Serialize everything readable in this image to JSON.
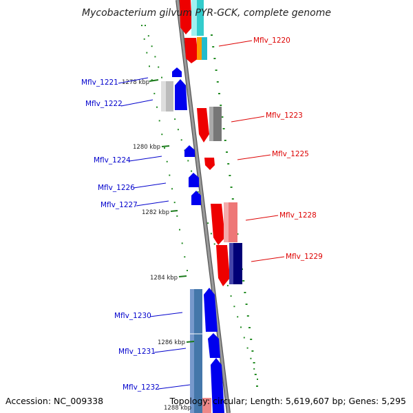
{
  "title": "Mycobacterium gilvum PYR-GCK, complete genome",
  "footer": {
    "accession": "Accession: NC_009338",
    "stats": "Topology: circular; Length: 5,619,607 bp; Genes: 5,295"
  },
  "colors": {
    "forward_cds": "#0000ee",
    "reverse_cds": "#ee0000",
    "label_blue": "#0000cc",
    "label_red": "#dd0000",
    "backbone": "#888888",
    "dots": "#228b22"
  },
  "scale_labels": [
    "1278 kbp",
    "1280 kbp",
    "1282 kbp",
    "1284 kbp",
    "1286 kbp",
    "1288 kbp"
  ],
  "genes": [
    {
      "id": "Mflv_1220",
      "side": "right"
    },
    {
      "id": "Mflv_1221",
      "side": "left"
    },
    {
      "id": "Mflv_1222",
      "side": "left"
    },
    {
      "id": "Mflv_1223",
      "side": "right"
    },
    {
      "id": "Mflv_1224",
      "side": "left"
    },
    {
      "id": "Mflv_1225",
      "side": "right"
    },
    {
      "id": "Mflv_1226",
      "side": "left"
    },
    {
      "id": "Mflv_1227",
      "side": "left"
    },
    {
      "id": "Mflv_1228",
      "side": "right"
    },
    {
      "id": "Mflv_1229",
      "side": "right"
    },
    {
      "id": "Mflv_1230",
      "side": "left"
    },
    {
      "id": "Mflv_1231",
      "side": "left"
    },
    {
      "id": "Mflv_1232",
      "side": "left"
    }
  ]
}
